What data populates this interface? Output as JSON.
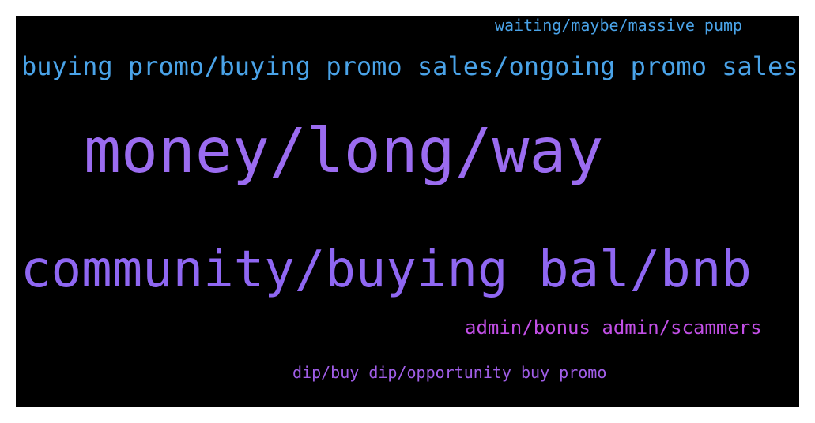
{
  "word_cloud": {
    "words": [
      {
        "text": "waiting/maybe/massive pump",
        "color": "#4aa3e8"
      },
      {
        "text": "buying promo/buying promo sales/ongoing promo sales",
        "color": "#4aa3e8"
      },
      {
        "text": "money/long/way",
        "color": "#9b6cf0"
      },
      {
        "text": "community/buying bal/bnb",
        "color": "#8f67f2"
      },
      {
        "text": "admin/bonus admin/scammers",
        "color": "#c24fe6"
      },
      {
        "text": "dip/buy dip/opportunity buy promo",
        "color": "#a15ee8"
      }
    ]
  }
}
